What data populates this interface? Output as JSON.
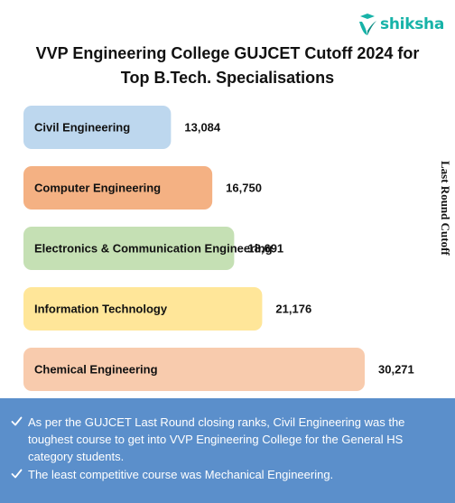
{
  "brand": {
    "name": "shiksha",
    "color": "#17b3a8"
  },
  "title": "VVP Engineering College GUJCET Cutoff 2024 for\nTop B.Tech. Specialisations",
  "chart_data": {
    "type": "bar",
    "orientation": "horizontal",
    "ylabel": "Last Round Cutoff",
    "categories": [
      "Civil Engineering",
      "Computer Engineering",
      "Electronics & Communication Engineering",
      "Information Technology",
      "Chemical Engineering"
    ],
    "values": [
      13084,
      16750,
      18691,
      21176,
      30271
    ],
    "value_labels": [
      "13,084",
      "16,750",
      "18,691",
      "21,176",
      "30,271"
    ],
    "colors": [
      "#bdd7ee",
      "#f4b183",
      "#c5e0b4",
      "#ffe699",
      "#f8cbad"
    ],
    "grid": false,
    "legend": "none"
  },
  "notes": {
    "background": "#5b8fcb",
    "items": [
      "As per the GUJCET Last Round closing ranks, Civil Engineering was the toughest course to get into VVP Engineering College for the General HS category students.",
      "The least competitive course was Mechanical Engineering."
    ]
  }
}
